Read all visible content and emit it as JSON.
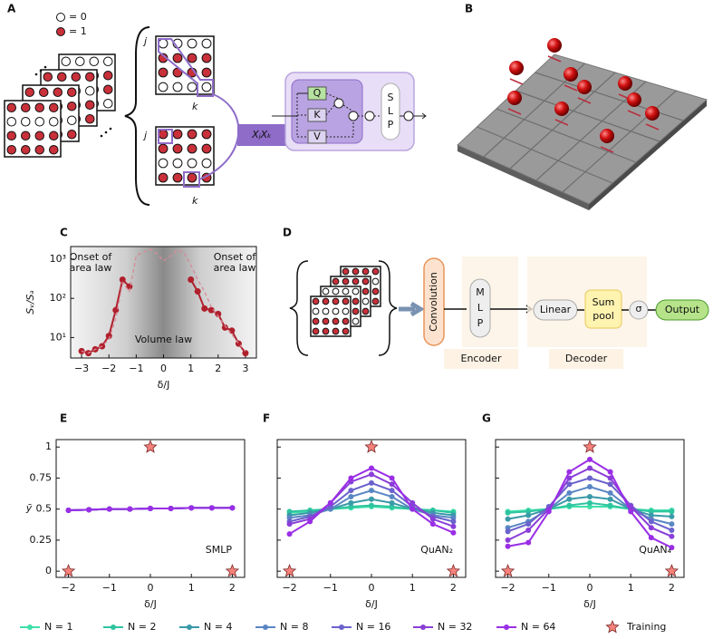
{
  "panels": {
    "labels": [
      "A",
      "B",
      "C",
      "D",
      "E",
      "F",
      "G"
    ],
    "A": {
      "legend": [
        "= 0",
        "= 1"
      ],
      "j": "j",
      "k": "k",
      "operator": "XⱼXₖ",
      "attention": [
        "Q",
        "K",
        "V"
      ],
      "slp": [
        "S",
        "L",
        "P"
      ]
    },
    "D": {
      "convolution": "Convolution",
      "mlp": [
        "M",
        "L",
        "P"
      ],
      "encoder": "Encoder",
      "linear": "Linear",
      "sum_pool": [
        "Sum",
        "pool"
      ],
      "sigma": "σ",
      "output": "Output",
      "decoder": "Decoder"
    }
  },
  "chart_data": [
    {
      "type": "line",
      "log_y": true,
      "shaded_background": true,
      "xlabel": "δ/J",
      "ylabel": "Sᵥ/Sₐ",
      "xlim": [
        -3.4,
        3.4
      ],
      "xticks": [
        {
          "value": -3,
          "label": "−3"
        },
        {
          "value": -2,
          "label": "−2"
        },
        {
          "value": -1,
          "label": "−1"
        },
        0,
        1,
        2,
        3
      ],
      "ylim": [
        3,
        2100
      ],
      "yticks": [
        {
          "value": 10,
          "label": "10¹"
        },
        {
          "value": 100,
          "label": "10²"
        },
        {
          "value": 1000,
          "label": "10³"
        }
      ],
      "annotations": [
        [
          "Onset of",
          "area law"
        ],
        [
          "Onset of",
          "area law"
        ],
        [
          "Volume law"
        ]
      ],
      "series": [
        {
          "color": "#b0202c",
          "markers": true,
          "x": [
            -3,
            -2.75,
            -2.5,
            -2.25,
            -2,
            -1.75,
            -1.5,
            -1.25,
            0,
            1,
            1.25,
            1.5,
            1.75,
            2,
            2.25,
            2.5,
            2.75,
            3
          ],
          "values": [
            4.5,
            4,
            5,
            6,
            11,
            50,
            300,
            200,
            null,
            300,
            150,
            55,
            50,
            40,
            18,
            15,
            7,
            4
          ]
        },
        {
          "color": "#d88a98",
          "dashed": true,
          "x": [
            -3,
            -2.75,
            -2.5,
            -2.25,
            -2,
            -1.75,
            -1.5,
            -1.25,
            -1,
            -0.75,
            -0.5,
            -0.25,
            0,
            0.25,
            0.5,
            0.75,
            1,
            1.25,
            1.5,
            1.75,
            2,
            2.25,
            2.5,
            2.75,
            3
          ],
          "values": [
            4.5,
            4,
            5,
            6,
            9,
            30,
            250,
            150,
            1200,
            1500,
            1800,
            1400,
            900,
            1200,
            1700,
            1500,
            700,
            300,
            150,
            60,
            35,
            20,
            12,
            7,
            4.5
          ]
        }
      ]
    },
    {
      "type": "line",
      "xlabel": "δ/J",
      "ylabel": "ȳ",
      "label": "SMLP",
      "xlim": [
        -2.3,
        2.3
      ],
      "xticks": [
        {
          "value": -2,
          "label": "−2"
        },
        {
          "value": -1,
          "label": "−1"
        },
        0,
        1,
        2
      ],
      "ylim": [
        -0.05,
        1.06
      ],
      "yticks": [
        0,
        0.25,
        0.5,
        0.75,
        1
      ],
      "x": [
        -2,
        -1.5,
        -1,
        -0.5,
        0,
        0.5,
        1,
        1.5,
        2
      ],
      "series": [
        {
          "name": "N = 1",
          "color": "#3fe0a8",
          "markers": true,
          "values": [
            0.49,
            0.495,
            0.5,
            0.5,
            0.505,
            0.505,
            0.51,
            0.51,
            0.51
          ]
        },
        {
          "name": "N = 2",
          "color": "#2ec4a0",
          "markers": true,
          "values": [
            0.49,
            0.495,
            0.5,
            0.5,
            0.505,
            0.505,
            0.51,
            0.51,
            0.51
          ]
        },
        {
          "name": "N = 4",
          "color": "#3a9aa8",
          "markers": true,
          "values": [
            0.49,
            0.495,
            0.5,
            0.5,
            0.505,
            0.505,
            0.51,
            0.51,
            0.51
          ]
        },
        {
          "name": "N = 8",
          "color": "#5a86c4",
          "markers": true,
          "values": [
            0.49,
            0.495,
            0.5,
            0.5,
            0.505,
            0.505,
            0.51,
            0.51,
            0.51
          ]
        },
        {
          "name": "N = 16",
          "color": "#6b62cc",
          "markers": true,
          "values": [
            0.49,
            0.495,
            0.5,
            0.5,
            0.505,
            0.505,
            0.51,
            0.51,
            0.51
          ]
        },
        {
          "name": "N = 32",
          "color": "#8a3ed8",
          "markers": true,
          "values": [
            0.49,
            0.495,
            0.5,
            0.5,
            0.505,
            0.505,
            0.51,
            0.51,
            0.51
          ]
        },
        {
          "name": "N = 64",
          "color": "#9a2ee6",
          "markers": true,
          "values": [
            0.49,
            0.495,
            0.5,
            0.5,
            0.505,
            0.505,
            0.51,
            0.51,
            0.51
          ]
        }
      ],
      "training": {
        "name": "Training",
        "color": "#f4817a",
        "x": [
          -2,
          0,
          2
        ],
        "values": [
          0,
          1,
          0
        ]
      }
    },
    {
      "type": "line",
      "xlabel": "δ/J",
      "label": "QuAN₂",
      "ytick_labels": false,
      "xlim": [
        -2.3,
        2.3
      ],
      "xticks": [
        {
          "value": -2,
          "label": "−2"
        },
        {
          "value": -1,
          "label": "−1"
        },
        0,
        1,
        2
      ],
      "ylim": [
        -0.05,
        1.06
      ],
      "yticks": [
        0,
        0.25,
        0.5,
        0.75,
        1
      ],
      "x": [
        -2,
        -1.5,
        -1,
        -0.5,
        0,
        0.5,
        1,
        1.5,
        2
      ],
      "series": [
        {
          "name": "N = 1",
          "color": "#3fe0a8",
          "markers": true,
          "values": [
            0.47,
            0.48,
            0.5,
            0.51,
            0.52,
            0.51,
            0.5,
            0.49,
            0.48
          ]
        },
        {
          "name": "N = 2",
          "color": "#2ec4a0",
          "markers": true,
          "values": [
            0.48,
            0.49,
            0.5,
            0.52,
            0.53,
            0.52,
            0.5,
            0.49,
            0.47
          ]
        },
        {
          "name": "N = 4",
          "color": "#3a9aa8",
          "markers": true,
          "values": [
            0.45,
            0.47,
            0.5,
            0.55,
            0.58,
            0.55,
            0.5,
            0.47,
            0.45
          ]
        },
        {
          "name": "N = 8",
          "color": "#5a86c4",
          "markers": true,
          "values": [
            0.43,
            0.45,
            0.5,
            0.6,
            0.65,
            0.6,
            0.5,
            0.45,
            0.43
          ]
        },
        {
          "name": "N = 16",
          "color": "#6b62cc",
          "markers": true,
          "values": [
            0.4,
            0.44,
            0.52,
            0.65,
            0.71,
            0.65,
            0.52,
            0.44,
            0.4
          ]
        },
        {
          "name": "N = 32",
          "color": "#8a3ed8",
          "markers": true,
          "values": [
            0.38,
            0.42,
            0.55,
            0.72,
            0.78,
            0.7,
            0.55,
            0.42,
            0.36
          ]
        },
        {
          "name": "N = 64",
          "color": "#9a2ee6",
          "markers": true,
          "values": [
            0.3,
            0.4,
            0.55,
            0.75,
            0.83,
            0.75,
            0.5,
            0.38,
            0.31
          ]
        }
      ],
      "training": {
        "name": "Training",
        "color": "#f4817a",
        "x": [
          -2,
          0,
          2
        ],
        "values": [
          0,
          1,
          0
        ]
      }
    },
    {
      "type": "line",
      "xlabel": "δ/J",
      "label": "QuAN₄",
      "ytick_labels": false,
      "xlim": [
        -2.3,
        2.3
      ],
      "xticks": [
        {
          "value": -2,
          "label": "−2"
        },
        {
          "value": -1,
          "label": "−1"
        },
        0,
        1,
        2
      ],
      "ylim": [
        -0.05,
        1.06
      ],
      "yticks": [
        0,
        0.25,
        0.5,
        0.75,
        1
      ],
      "x": [
        -2,
        -1.5,
        -1,
        -0.5,
        0,
        0.5,
        1,
        1.5,
        2
      ],
      "series": [
        {
          "name": "N = 1",
          "color": "#3fe0a8",
          "markers": true,
          "values": [
            0.48,
            0.49,
            0.5,
            0.52,
            0.52,
            0.52,
            0.5,
            0.49,
            0.49
          ]
        },
        {
          "name": "N = 2",
          "color": "#2ec4a0",
          "markers": true,
          "values": [
            0.47,
            0.48,
            0.5,
            0.53,
            0.55,
            0.53,
            0.5,
            0.48,
            0.48
          ]
        },
        {
          "name": "N = 4",
          "color": "#3a9aa8",
          "markers": true,
          "values": [
            0.42,
            0.45,
            0.5,
            0.58,
            0.6,
            0.58,
            0.5,
            0.45,
            0.44
          ]
        },
        {
          "name": "N = 8",
          "color": "#5a86c4",
          "markers": true,
          "values": [
            0.35,
            0.4,
            0.5,
            0.63,
            0.68,
            0.63,
            0.5,
            0.42,
            0.38
          ]
        },
        {
          "name": "N = 16",
          "color": "#6b62cc",
          "markers": true,
          "values": [
            0.32,
            0.38,
            0.52,
            0.7,
            0.75,
            0.7,
            0.53,
            0.4,
            0.33
          ]
        },
        {
          "name": "N = 32",
          "color": "#8a3ed8",
          "markers": true,
          "values": [
            0.25,
            0.33,
            0.5,
            0.75,
            0.83,
            0.75,
            0.52,
            0.35,
            0.28
          ]
        },
        {
          "name": "N = 64",
          "color": "#9a2ee6",
          "markers": true,
          "values": [
            0.2,
            0.23,
            0.48,
            0.8,
            0.9,
            0.8,
            0.48,
            0.27,
            0.19
          ]
        }
      ],
      "training": {
        "name": "Training",
        "color": "#f4817a",
        "x": [
          -2,
          0,
          2
        ],
        "values": [
          0,
          1,
          0
        ]
      }
    }
  ]
}
